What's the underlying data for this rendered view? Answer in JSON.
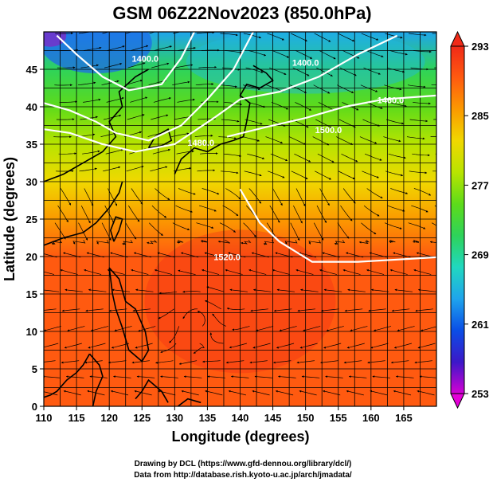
{
  "title": "GSM 06Z22Nov2023 (850.0hPa)",
  "axes": {
    "xlabel": "Longitude (degrees)",
    "ylabel": "Latitude  (degrees)",
    "xlim": [
      110,
      170
    ],
    "ylim": [
      0,
      50
    ],
    "xticks": [
      110,
      115,
      120,
      125,
      130,
      135,
      140,
      145,
      150,
      155,
      160,
      165
    ],
    "yticks": [
      0,
      5,
      10,
      15,
      20,
      25,
      30,
      35,
      40,
      45
    ],
    "grid": true,
    "grid_step_x": 2.5,
    "grid_step_y": 2.5
  },
  "colorbar": {
    "field": "temperature",
    "min": 253,
    "max": 293,
    "labels": [
      293,
      285,
      277,
      269,
      261,
      253
    ],
    "colors": [
      "#d400d4",
      "#3c18c8",
      "#0a4ee6",
      "#1fa4ec",
      "#20d8c0",
      "#2ed35a",
      "#5ddb1a",
      "#b8e400",
      "#f0d800",
      "#fb9a00",
      "#ff5a10",
      "#f02a18"
    ]
  },
  "contours": {
    "field": "geopotential height",
    "labels": [
      "1400.0",
      "1400.0",
      "1460.0",
      "1480.0",
      "1500.0",
      "1520.0"
    ]
  },
  "footer": {
    "line1": "Drawing by DCL (https://www.gfd-dennou.org/library/dcl/)",
    "line2": "Data from http://database.rish.kyoto-u.ac.jp/arch/jmadata/"
  },
  "chart_data": {
    "type": "heatmap",
    "title": "GSM 06Z22Nov2023 (850.0hPa)",
    "xlabel": "Longitude (degrees)",
    "ylabel": "Latitude  (degrees)",
    "xlim": [
      110,
      170
    ],
    "ylim": [
      0,
      50
    ],
    "temperature_vs_latitude": {
      "lat": [
        0,
        5,
        10,
        15,
        20,
        25,
        30,
        35,
        40,
        45,
        50
      ],
      "value": [
        291,
        291,
        290,
        289,
        288,
        286,
        282,
        279,
        275,
        272,
        265
      ]
    },
    "height_contours": [
      {
        "label": "1400.0",
        "points": [
          [
            112,
            49.5
          ],
          [
            115,
            47
          ],
          [
            119,
            44
          ],
          [
            123,
            42.2
          ],
          [
            128,
            43
          ],
          [
            131,
            46.5
          ],
          [
            133,
            50
          ]
        ]
      },
      {
        "label": "1460.0",
        "points": [
          [
            110,
            40.5
          ],
          [
            114,
            39.5
          ],
          [
            118,
            38
          ],
          [
            121,
            36.5
          ],
          [
            126,
            35.5
          ],
          [
            131,
            37.5
          ],
          [
            135,
            41
          ],
          [
            139,
            45
          ],
          [
            142,
            50
          ]
        ]
      },
      {
        "label": "1480.0",
        "points": [
          [
            110,
            37
          ],
          [
            114,
            36.5
          ],
          [
            119,
            35
          ],
          [
            124,
            34
          ],
          [
            130,
            35
          ],
          [
            136,
            38.5
          ],
          [
            140,
            41
          ],
          [
            146,
            42
          ],
          [
            152,
            44
          ],
          [
            158,
            47
          ],
          [
            164,
            49.5
          ]
        ]
      },
      {
        "label": "1500.0",
        "points": [
          [
            138,
            36
          ],
          [
            144,
            37.3
          ],
          [
            150,
            38.5
          ],
          [
            156,
            40
          ],
          [
            162,
            41
          ],
          [
            170,
            41.5
          ]
        ]
      },
      {
        "label": "1520.0",
        "points": [
          [
            140,
            29
          ],
          [
            143,
            24.5
          ],
          [
            146,
            22
          ],
          [
            151,
            19.3
          ],
          [
            158,
            19.3
          ],
          [
            164,
            19.6
          ],
          [
            170,
            19.9
          ]
        ]
      }
    ]
  }
}
